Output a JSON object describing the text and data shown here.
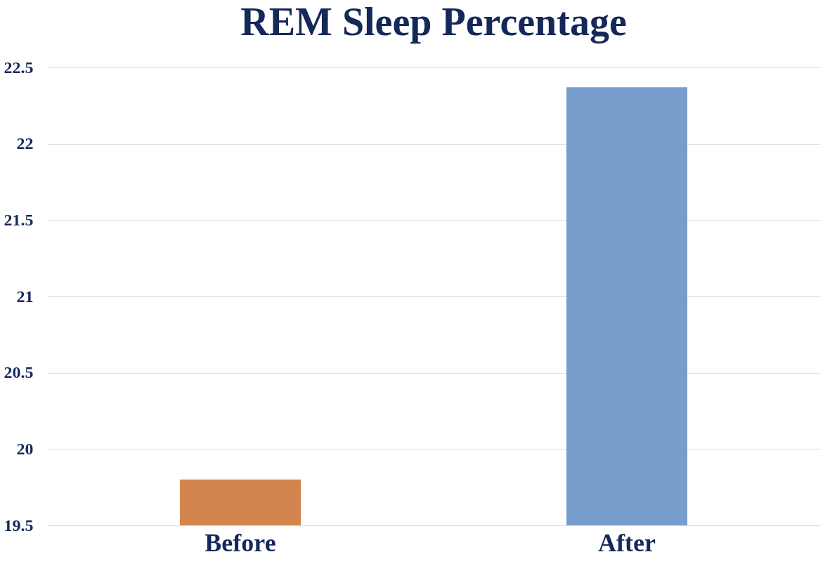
{
  "chart_data": {
    "type": "bar",
    "title": "REM Sleep Percentage",
    "categories": [
      "Before",
      "After"
    ],
    "values": [
      19.8,
      22.37
    ],
    "colors": [
      "#d2854f",
      "#779dcc"
    ],
    "ylim": [
      19.5,
      22.5
    ],
    "yticks": [
      19.5,
      20,
      20.5,
      21,
      21.5,
      22,
      22.5
    ],
    "grid": "y",
    "legend": false
  }
}
